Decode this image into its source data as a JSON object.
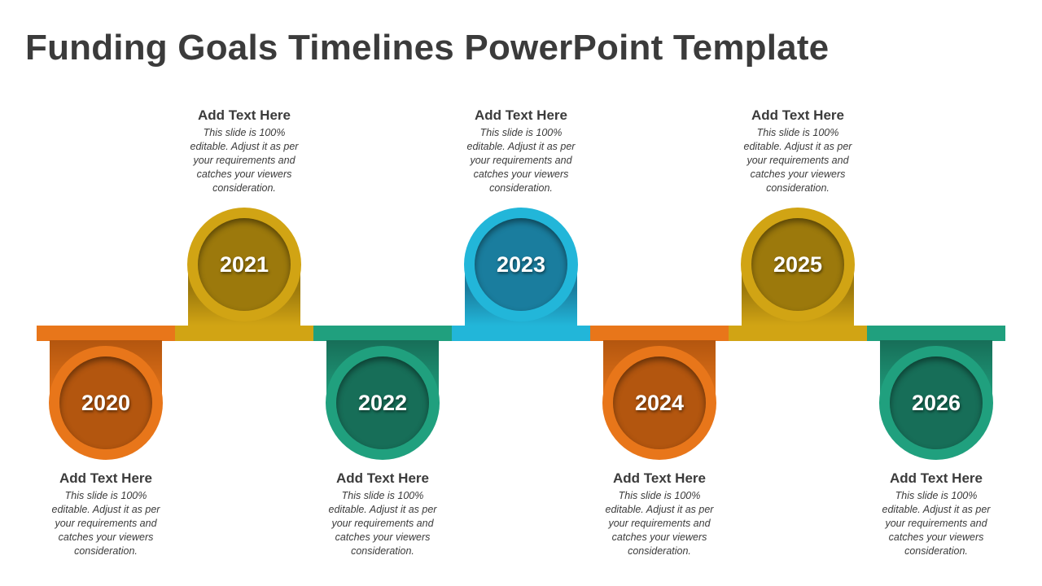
{
  "title": "Funding Goals Timelines PowerPoint Template",
  "colors": {
    "orange": "#E8761A",
    "orange_dark": "#B3560F",
    "gold": "#D1A414",
    "gold_dark": "#9C790C",
    "teal": "#20A07E",
    "teal_dark": "#176E58",
    "blue": "#22B6D9",
    "blue_dark": "#1A7D9E"
  },
  "milestones": [
    {
      "year": "2020",
      "position": "below",
      "color": "orange",
      "heading": "Add Text Here",
      "body": "This slide is 100% editable. Adjust  it as per your requirements and catches your viewers consideration."
    },
    {
      "year": "2021",
      "position": "above",
      "color": "gold",
      "heading": "Add Text Here",
      "body": "This slide is 100% editable. Adjust  it as per your requirements and catches your viewers consideration."
    },
    {
      "year": "2022",
      "position": "below",
      "color": "teal",
      "heading": "Add Text Here",
      "body": "This slide is 100% editable. Adjust  it as per your requirements and catches your viewers consideration."
    },
    {
      "year": "2023",
      "position": "above",
      "color": "blue",
      "heading": "Add Text Here",
      "body": "This slide is 100% editable. Adjust  it as per your requirements and catches your viewers consideration."
    },
    {
      "year": "2024",
      "position": "below",
      "color": "orange",
      "heading": "Add Text Here",
      "body": "This slide is 100% editable. Adjust  it as per your requirements and catches your viewers consideration."
    },
    {
      "year": "2025",
      "position": "above",
      "color": "gold",
      "heading": "Add Text Here",
      "body": "This slide is 100% editable. Adjust  it as per your requirements and catches your viewers consideration."
    },
    {
      "year": "2026",
      "position": "below",
      "color": "teal",
      "heading": "Add Text Here",
      "body": "This slide is 100% editable. Adjust  it as per your requirements and catches your viewers consideration."
    }
  ]
}
